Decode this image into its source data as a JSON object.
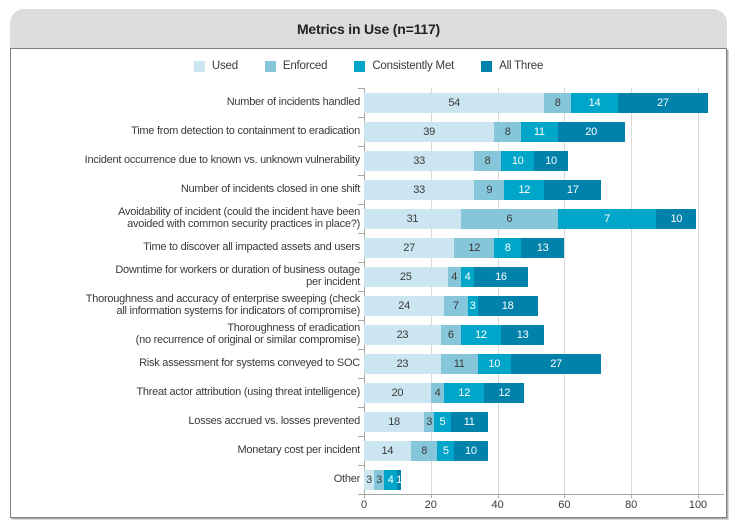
{
  "title": "Metrics in Use (n=117)",
  "palette": {
    "header_bg": "#dbdcde",
    "panel_border": "#7f7f7f",
    "gridline": "#d9d9d9",
    "axis": "#a6a6a6",
    "text": "#3a3a3a",
    "value_on_light_segments": "#3a3a3a",
    "value_on_dark_segments": "#ffffff"
  },
  "chart_data": {
    "type": "bar",
    "orientation": "horizontal",
    "stacked": true,
    "title": "Metrics in Use (n=117)",
    "legend_position": "top",
    "grid": "vertical-only",
    "xlabel": "",
    "ylabel": "",
    "xlim": [
      0,
      100
    ],
    "x_ticks": [
      0,
      20,
      40,
      60,
      80,
      100
    ],
    "series": [
      {
        "name": "Used",
        "color": "#cbe6f0",
        "value_text_color": "#3a3a3a"
      },
      {
        "name": "Enforced",
        "color": "#86c6da",
        "value_text_color": "#3a3a3a"
      },
      {
        "name": "Consistently Met",
        "color": "#00a6c9",
        "value_text_color": "#ffffff"
      },
      {
        "name": "All Three",
        "color": "#0082ab",
        "value_text_color": "#ffffff"
      }
    ],
    "categories": [
      "Number of incidents handled",
      "Time from detection to containment to eradication",
      "Incident occurrence due to known vs. unknown vulnerability",
      "Number of incidents closed in one shift",
      "Avoidability of incident (could the incident have been\navoided with common security practices in place?)",
      "Time to discover all impacted assets and users",
      "Downtime for workers or duration of business outage\nper incident",
      "Thoroughness and accuracy of enterprise sweeping (check\nall information systems for indicators of compromise)",
      "Thoroughness of eradication\n(no recurrence of original or similar compromise)",
      "Risk assessment for systems conveyed to SOC",
      "Threat actor attribution (using threat intelligence)",
      "Losses accrued vs. losses prevented",
      "Monetary cost per incident",
      "Other"
    ],
    "values": [
      [
        54,
        8,
        14,
        27
      ],
      [
        39,
        8,
        11,
        20
      ],
      [
        33,
        8,
        10,
        10
      ],
      [
        33,
        9,
        12,
        17
      ],
      [
        31,
        6,
        7,
        10
      ],
      [
        27,
        12,
        8,
        13
      ],
      [
        25,
        4,
        4,
        16
      ],
      [
        24,
        7,
        3,
        18
      ],
      [
        23,
        6,
        12,
        13
      ],
      [
        23,
        11,
        10,
        27
      ],
      [
        20,
        4,
        12,
        12
      ],
      [
        18,
        3,
        5,
        11
      ],
      [
        14,
        8,
        5,
        10
      ],
      [
        3,
        3,
        4,
        1
      ]
    ],
    "visual_widths_override": {
      "4": [
        29,
        29,
        29.5,
        12
      ]
    },
    "note_on_override": "In the source image the 'Avoidability of incident' bar is drawn stretched to ~100 units even though its labeled values sum to 54; override widths reproduce the rendered pixels."
  }
}
